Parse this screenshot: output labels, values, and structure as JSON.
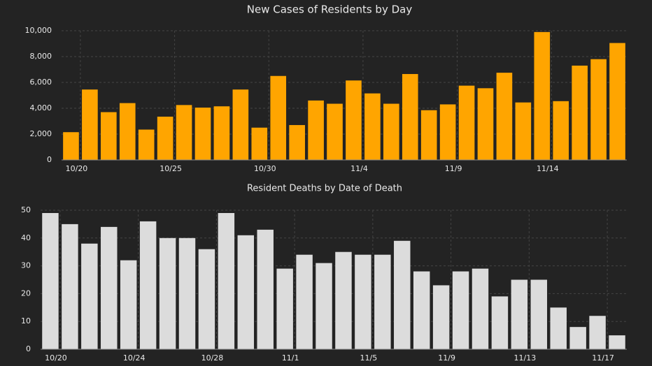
{
  "chart_data": [
    {
      "type": "bar",
      "title": "New Cases of Residents by Day",
      "color": "#ffa500",
      "grid": true,
      "categories": [
        "10/20",
        null,
        null,
        null,
        null,
        "10/25",
        null,
        null,
        null,
        null,
        "10/30",
        null,
        null,
        null,
        null,
        "11/4",
        null,
        null,
        null,
        null,
        "11/9",
        null,
        null,
        null,
        null,
        "11/14",
        null,
        null,
        null,
        null
      ],
      "values": [
        2150,
        5450,
        3700,
        4400,
        2350,
        3350,
        4250,
        4050,
        4150,
        5450,
        2500,
        6500,
        2700,
        4600,
        4350,
        6150,
        5150,
        4350,
        6650,
        3850,
        4300,
        5750,
        5550,
        6750,
        4450,
        9900,
        4550,
        7300,
        7800,
        9050
      ],
      "ylim": [
        0,
        10000
      ],
      "yticks": [
        0,
        {
          "value": 2000,
          "label": "2,000"
        },
        {
          "value": 4000,
          "label": "4,000"
        },
        {
          "value": 6000,
          "label": "6,000"
        },
        {
          "value": 8000,
          "label": "8,000"
        },
        {
          "value": 10000,
          "label": "10,000"
        }
      ]
    },
    {
      "type": "bar",
      "title": "Resident Deaths by Date of Death",
      "color": "#dcdcdc",
      "grid": true,
      "categories": [
        "10/20",
        null,
        null,
        null,
        "10/24",
        null,
        null,
        null,
        "10/28",
        null,
        null,
        null,
        "11/1",
        null,
        null,
        null,
        "11/5",
        null,
        null,
        null,
        "11/9",
        null,
        null,
        null,
        "11/13",
        null,
        null,
        null,
        "11/17",
        null
      ],
      "values": [
        49,
        45,
        38,
        44,
        32,
        46,
        40,
        40,
        36,
        49,
        41,
        43,
        29,
        34,
        31,
        35,
        34,
        34,
        39,
        28,
        23,
        28,
        29,
        19,
        25,
        25,
        15,
        8,
        12,
        5
      ],
      "ylim": [
        0,
        50
      ],
      "yticks": [
        0,
        10,
        20,
        30,
        40,
        50
      ]
    }
  ]
}
